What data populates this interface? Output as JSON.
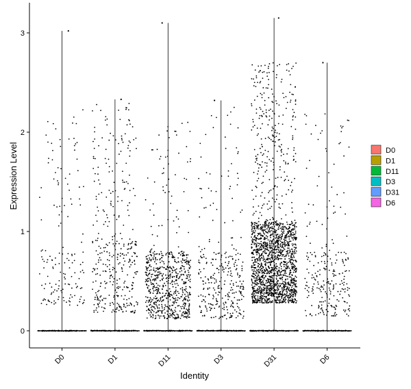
{
  "chart_data": {
    "type": "violin-jitter",
    "xlabel": "Identity",
    "ylabel": "Expression Level",
    "categories": [
      "D0",
      "D1",
      "D11",
      "D3",
      "D31",
      "D6"
    ],
    "y_ticks": [
      "0",
      "1",
      "2",
      "3"
    ],
    "ylim": [
      -0.17,
      3.2
    ],
    "series": [
      {
        "name": "D0",
        "color": "#F8766D",
        "max": 3.02,
        "expressed_points": 160,
        "expr_lo": 0.25,
        "expr_hi": 2.3,
        "dense_hi": 0.8,
        "dense_frac": 0.5
      },
      {
        "name": "D1",
        "color": "#B79F00",
        "max": 2.33,
        "expressed_points": 380,
        "expr_lo": 0.18,
        "expr_hi": 2.3,
        "dense_hi": 0.9,
        "dense_frac": 0.45
      },
      {
        "name": "D11",
        "color": "#00BA38",
        "max": 3.1,
        "expressed_points": 700,
        "expr_lo": 0.12,
        "expr_hi": 2.1,
        "dense_hi": 0.8,
        "dense_frac": 0.88
      },
      {
        "name": "D3",
        "color": "#00BFC4",
        "max": 2.32,
        "expressed_points": 320,
        "expr_lo": 0.12,
        "expr_hi": 2.3,
        "dense_hi": 0.8,
        "dense_frac": 0.72
      },
      {
        "name": "D31",
        "color": "#619CFF",
        "max": 3.15,
        "expressed_points": 1900,
        "expr_lo": 0.28,
        "expr_hi": 2.7,
        "dense_hi": 1.1,
        "dense_frac": 0.78
      },
      {
        "name": "D6",
        "color": "#F564E3",
        "max": 2.7,
        "expressed_points": 260,
        "expr_lo": 0.15,
        "expr_hi": 2.2,
        "dense_hi": 0.8,
        "dense_frac": 0.65
      }
    ],
    "legend": {
      "position": "right",
      "entries": [
        "D0",
        "D1",
        "D11",
        "D3",
        "D31",
        "D6"
      ]
    },
    "grid": false
  }
}
